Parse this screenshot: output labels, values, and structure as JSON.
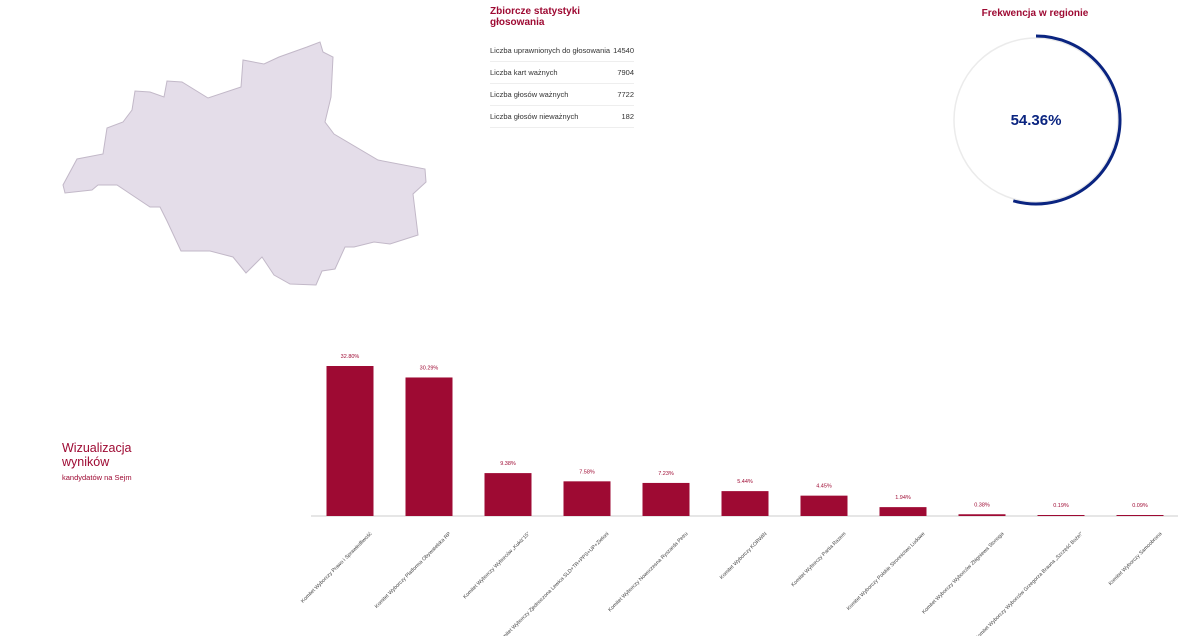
{
  "stats": {
    "title": "Zbiorcze statystyki głosowania",
    "rows": [
      {
        "label": "Liczba uprawnionych do głosowania",
        "value": "14540"
      },
      {
        "label": "Liczba kart ważnych",
        "value": "7904"
      },
      {
        "label": "Liczba głosów ważnych",
        "value": "7722"
      },
      {
        "label": "Liczba głosów nieważnych",
        "value": "182"
      }
    ]
  },
  "turnout": {
    "title": "Frekwencja w regionie",
    "value_label": "54.36%",
    "fraction": 0.5436,
    "color": "#0a2480"
  },
  "visualization": {
    "title": "Wizualizacja wyników",
    "subtitle": "kandydatów na Sejm"
  },
  "colors": {
    "accent": "#9e0a33",
    "map_fill": "#e4dde9",
    "map_stroke": "#c2b8c8"
  },
  "chart_data": {
    "type": "bar",
    "categories": [
      "Komitet Wyborczy Prawo i Sprawiedliwość",
      "Komitet Wyborczy Platforma Obywatelska RP",
      "Komitet Wyborczy Wyborców „Kukiz'15”",
      "Koalicyjny Komitet Wyborczy Zjednoczona Lewica SLD+TR+PPS+UP+Zieloni",
      "Komitet Wyborczy Nowoczesna Ryszarda Petru",
      "Komitet Wyborczy KORWiN",
      "Komitet Wyborczy Partia Razem",
      "Komitet Wyborczy Polskie Stronnictwo Ludowe",
      "Komitet Wyborczy Wyborców Zbigniewa Stonoga",
      "Komitet Wyborczy Wyborców Grzegorza Brauna „Szczęść Boże!”",
      "Komitet Wyborczy Samoobrona"
    ],
    "values": [
      32.8,
      30.29,
      9.38,
      7.58,
      7.23,
      5.44,
      4.45,
      1.94,
      0.38,
      0.19,
      0.09
    ],
    "value_labels": [
      "32.80%",
      "30.29%",
      "9.38%",
      "7.58%",
      "7.23%",
      "5.44%",
      "4.45%",
      "1.94%",
      "0.38%",
      "0.19%",
      "0.09%"
    ],
    "ylim": [
      0,
      32.8
    ],
    "grid": false,
    "color": "#9e0a33"
  }
}
